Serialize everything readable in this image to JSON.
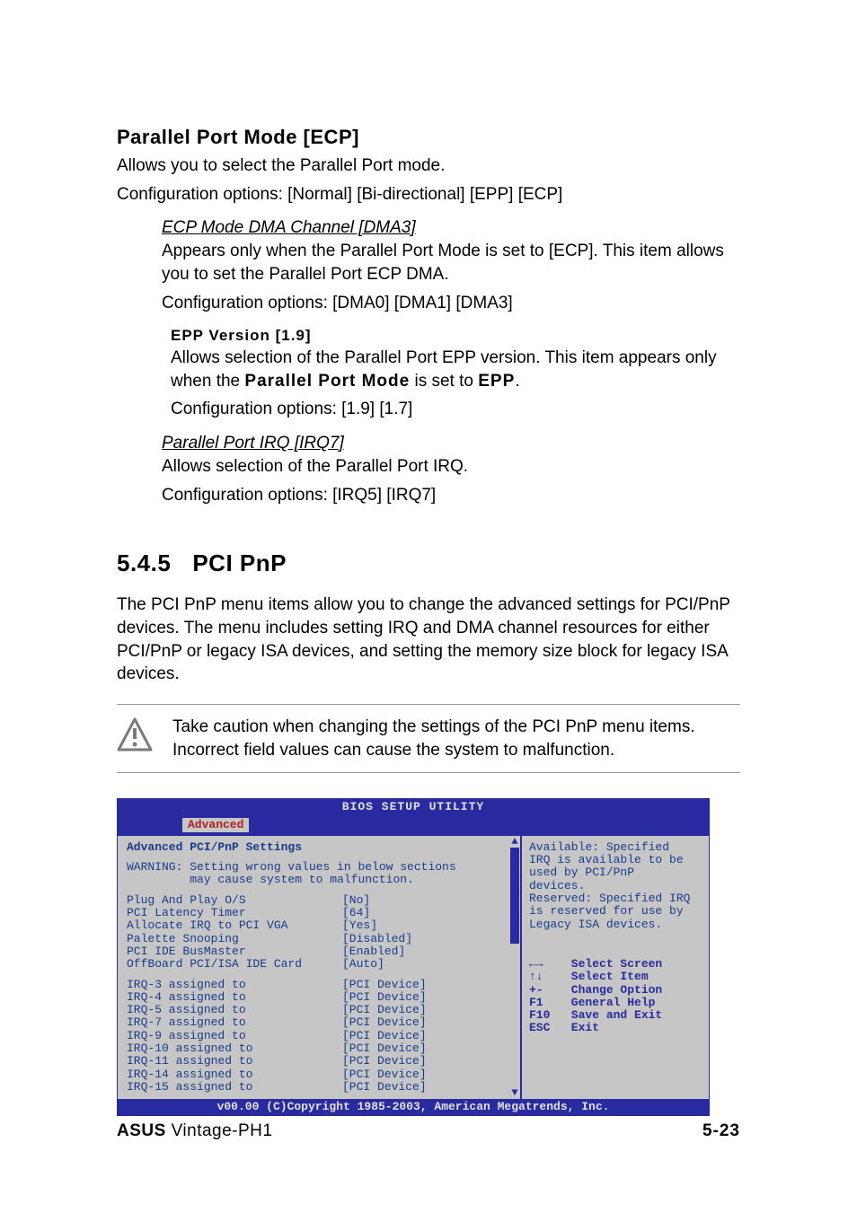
{
  "section_ppm": {
    "heading": "Parallel Port Mode [ECP]",
    "body1": "Allows you to select the Parallel Port  mode.",
    "body2": "Configuration options: [Normal] [Bi-directional] [EPP] [ECP]"
  },
  "section_ecp": {
    "heading": "ECP Mode DMA Channel [DMA3]",
    "body1": "Appears only when the Parallel Port Mode is set to [ECP]. This item allows you to set the Parallel Port ECP DMA.",
    "body2": "Configuration options: [DMA0] [DMA1] [DMA3]"
  },
  "section_epp": {
    "heading": "EPP Version [1.9]",
    "body_pre": "Allows selection of the Parallel Port EPP version. This item appears only when the ",
    "body_bold1": "Parallel Port Mode",
    "body_mid": " is set to ",
    "body_bold2": "EPP",
    "body_post": ".",
    "body2": "Configuration options: [1.9] [1.7]"
  },
  "section_ppirq": {
    "heading": "Parallel Port IRQ [IRQ7]",
    "body1": "Allows selection of the Parallel Port IRQ.",
    "body2": "Configuration options: [IRQ5] [IRQ7]"
  },
  "section545": {
    "number": "5.4.5",
    "title": "PCI PnP",
    "body": "The PCI PnP menu items allow you to change the advanced settings for PCI/PnP devices. The menu includes setting IRQ and DMA channel resources for either PCI/PnP or legacy ISA devices, and setting the memory size block for legacy ISA devices."
  },
  "note": {
    "text": "Take caution when changing the settings of the PCI PnP menu items. Incorrect field values can cause the system to malfunction."
  },
  "bios": {
    "title": "BIOS SETUP UTILITY",
    "active_tab": "Advanced",
    "header": "Advanced PCI/PnP Settings",
    "warning_l1": "WARNING: Setting wrong values in below sections",
    "warning_l2": "         may cause system to malfunction.",
    "settings": [
      {
        "label": "Plug And Play O/S",
        "value": "[No]"
      },
      {
        "label": "PCI Latency Timer",
        "value": "[64]"
      },
      {
        "label": "Allocate IRQ to PCI VGA",
        "value": "[Yes]"
      },
      {
        "label": "Palette Snooping",
        "value": "[Disabled]"
      },
      {
        "label": "PCI IDE BusMaster",
        "value": "[Enabled]"
      },
      {
        "label": "OffBoard PCI/ISA IDE Card",
        "value": "[Auto]"
      }
    ],
    "irq": [
      {
        "label": "IRQ-3 assigned to",
        "value": "[PCI Device]"
      },
      {
        "label": "IRQ-4 assigned to",
        "value": "[PCI Device]"
      },
      {
        "label": "IRQ-5 assigned to",
        "value": "[PCI Device]"
      },
      {
        "label": "IRQ-7 assigned to",
        "value": "[PCI Device]"
      },
      {
        "label": "IRQ-9 assigned to",
        "value": "[PCI Device]"
      },
      {
        "label": "IRQ-10 assigned to",
        "value": "[PCI Device]"
      },
      {
        "label": "IRQ-11 assigned to",
        "value": "[PCI Device]"
      },
      {
        "label": "IRQ-14 assigned to",
        "value": "[PCI Device]"
      },
      {
        "label": "IRQ-15 assigned to",
        "value": "[PCI Device]"
      }
    ],
    "help_top": "Available: Specified\nIRQ is available to be\nused by PCI/PnP\ndevices.\nReserved: Specified IRQ\nis reserved for use by\nLegacy ISA devices.",
    "nav": [
      {
        "key": "←→",
        "label": "Select Screen"
      },
      {
        "key": "↑↓",
        "label": "Select Item"
      },
      {
        "key": "+-",
        "label": "Change Option"
      },
      {
        "key": "F1",
        "label": "General Help"
      },
      {
        "key": "F10",
        "label": "Save and Exit"
      },
      {
        "key": "ESC",
        "label": "Exit"
      }
    ],
    "footer": "v00.00 (C)Copyright 1985-2003, American Megatrends, Inc.",
    "colors": {
      "header_bg": "#2a2aa0",
      "header_fg": "#e0e0e0",
      "body_bg": "#c6c6c6",
      "body_fg": "#1a3a8a",
      "tab_fg": "#b02020"
    },
    "scroll": {
      "thumb_top_pct": 0,
      "thumb_height_pct": 40
    }
  },
  "footer": {
    "brand": "ASUS",
    "model": "Vintage-PH1",
    "page": "5-23"
  }
}
